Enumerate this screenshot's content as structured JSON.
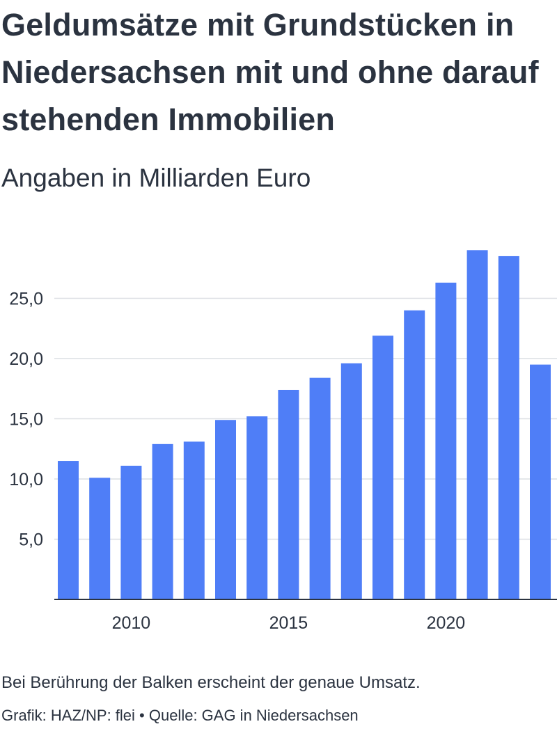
{
  "header": {
    "title": "Geldumsätze mit Grundstücken in Niedersachsen mit und ohne darauf stehenden Immobilien",
    "subtitle": "Angaben in Milliarden Euro"
  },
  "footer": {
    "note": "Bei Berührung der Balken erscheint der genaue Umsatz.",
    "credits": "Grafik: HAZ/NP: flei • Quelle: GAG in Niedersachsen"
  },
  "colors": {
    "bar": "#4f7ef7",
    "grid": "#dcdfe4",
    "axis": "#2b3340"
  },
  "chart_data": {
    "type": "bar",
    "title": "Geldumsätze mit Grundstücken in Niedersachsen mit und ohne darauf stehenden Immobilien",
    "subtitle": "Angaben in Milliarden Euro",
    "xlabel": "",
    "ylabel": "",
    "categories": [
      2008,
      2009,
      2010,
      2011,
      2012,
      2013,
      2014,
      2015,
      2016,
      2017,
      2018,
      2019,
      2020,
      2021,
      2022,
      2023
    ],
    "values": [
      11.5,
      10.1,
      11.1,
      12.9,
      13.1,
      14.9,
      15.2,
      17.4,
      18.4,
      19.6,
      21.9,
      24.0,
      26.3,
      29.0,
      28.5,
      19.5
    ],
    "x_ticks": [
      {
        "value": 2010,
        "label": "2010"
      },
      {
        "value": 2015,
        "label": "2015"
      },
      {
        "value": 2020,
        "label": "2020"
      }
    ],
    "y_ticks": [
      {
        "value": 5,
        "label": "5,0"
      },
      {
        "value": 10,
        "label": "10,0"
      },
      {
        "value": 15,
        "label": "15,0"
      },
      {
        "value": 20,
        "label": "20,0"
      },
      {
        "value": 25,
        "label": "25,0"
      }
    ],
    "ylim": [
      0,
      30
    ],
    "grid": true,
    "legend": "none"
  }
}
